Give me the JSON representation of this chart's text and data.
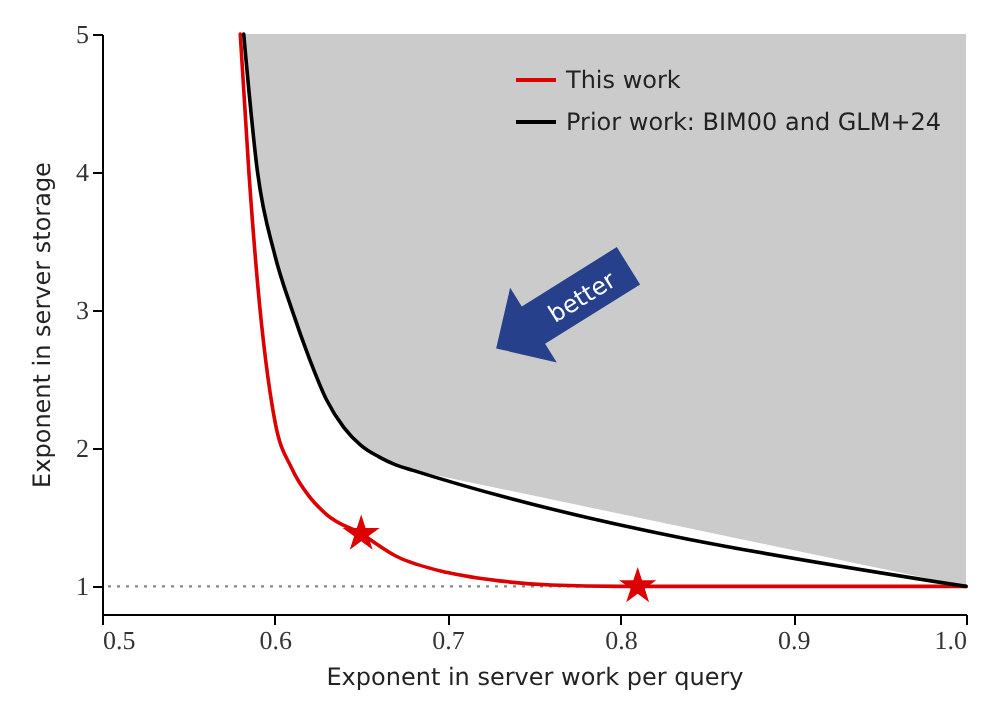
{
  "chart_data": {
    "type": "line",
    "xlabel": "Exponent in server work per query",
    "ylabel": "Exponent in server storage",
    "xlim": [
      0.5,
      1.0
    ],
    "ylim": [
      0.8,
      5
    ],
    "xticks": [
      {
        "value": 0.5,
        "label": "0.5"
      },
      0.6,
      0.7,
      0.8,
      0.9,
      {
        "value": 1.0,
        "label": "1.0"
      }
    ],
    "yticks": [
      1,
      2,
      3,
      4,
      5
    ],
    "legend": "top right",
    "grid": false,
    "annotations": [
      "better"
    ],
    "ref_lines": [
      {
        "axis": "y",
        "value": 1,
        "color": "#888888",
        "line_style": "dotted"
      }
    ],
    "series": [
      {
        "name": "This work",
        "color": "#dd0000",
        "line_style": "solid",
        "x": [
          0.58,
          0.585,
          0.59,
          0.6,
          0.61,
          0.62,
          0.63,
          0.65,
          0.67,
          0.7,
          0.73,
          0.76,
          0.8,
          1.0
        ],
        "values": [
          5,
          4.0,
          3.2,
          2.2,
          1.85,
          1.65,
          1.52,
          1.38,
          1.22,
          1.1,
          1.04,
          1.01,
          1.0,
          1.0
        ]
      },
      {
        "name": "Prior work: BIM00 and GLM+24",
        "color": "#000000",
        "line_style": "solid",
        "x": [
          0.582,
          0.59,
          0.6,
          0.61,
          0.62,
          0.63,
          0.64,
          0.65,
          0.66,
          0.67,
          0.68,
          1.0
        ],
        "values": [
          5,
          4.0,
          3.4,
          3.0,
          2.65,
          2.35,
          2.15,
          2.02,
          1.94,
          1.88,
          1.84,
          1.0
        ],
        "lower": [
          5,
          4.0,
          3.4,
          3.0,
          2.65,
          2.35,
          2.15,
          2.02,
          1.94,
          1.88,
          1.84,
          1.0
        ],
        "upper": [
          5,
          5,
          5,
          5,
          5,
          5,
          5,
          5,
          5,
          5,
          5,
          5
        ]
      },
      {
        "type": "scatter",
        "marker": "star",
        "color": "#dd0000",
        "x": [
          0.65,
          0.81
        ],
        "values": [
          1.38,
          1.0
        ]
      }
    ]
  }
}
